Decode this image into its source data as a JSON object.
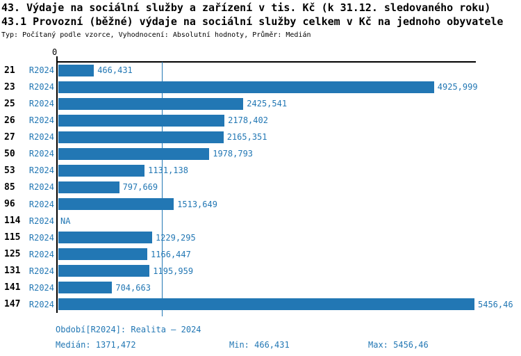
{
  "header": {
    "title_line1": "43. Výdaje na sociální služby a zařízení v tis. Kč (k 31.12. sledovaného roku)",
    "title_line2": "43.1 Provozní (běžné) výdaje na sociální služby celkem v Kč na jednoho obyvatele",
    "meta": "Typ: Počítaný podle vzorce, Vyhodnocení: Absolutní hodnoty, Průměr: Medián"
  },
  "colors": {
    "accent": "#2277b4",
    "axis": "#000000"
  },
  "chart_data": {
    "type": "bar",
    "orientation": "horizontal",
    "title": "43.1 Provozní (běžné) výdaje na sociální služby celkem v Kč na jednoho obyvatele",
    "zero_label": "0",
    "xlim": [
      0,
      5456.46
    ],
    "grid": false,
    "median_value": 1371.472,
    "series_label": "R2024",
    "categories": [
      "21",
      "23",
      "25",
      "26",
      "27",
      "50",
      "53",
      "85",
      "96",
      "114",
      "115",
      "125",
      "131",
      "141",
      "147"
    ],
    "values": [
      466.431,
      4925.999,
      2425.541,
      2178.402,
      2165.351,
      1978.793,
      1131.138,
      797.669,
      1513.649,
      null,
      1229.295,
      1166.447,
      1195.959,
      704.663,
      5456.46
    ],
    "value_labels": [
      "466,431",
      "4925,999",
      "2425,541",
      "2178,402",
      "2165,351",
      "1978,793",
      "1131,138",
      "797,669",
      "1513,649",
      "NA",
      "1229,295",
      "1166,447",
      "1195,959",
      "704,663",
      "5456,46"
    ]
  },
  "footer": {
    "period": "Období[R2024]: Realita – 2024",
    "median": "Medián: 1371,472",
    "min": "Min: 466,431",
    "max": "Max: 5456,46"
  }
}
